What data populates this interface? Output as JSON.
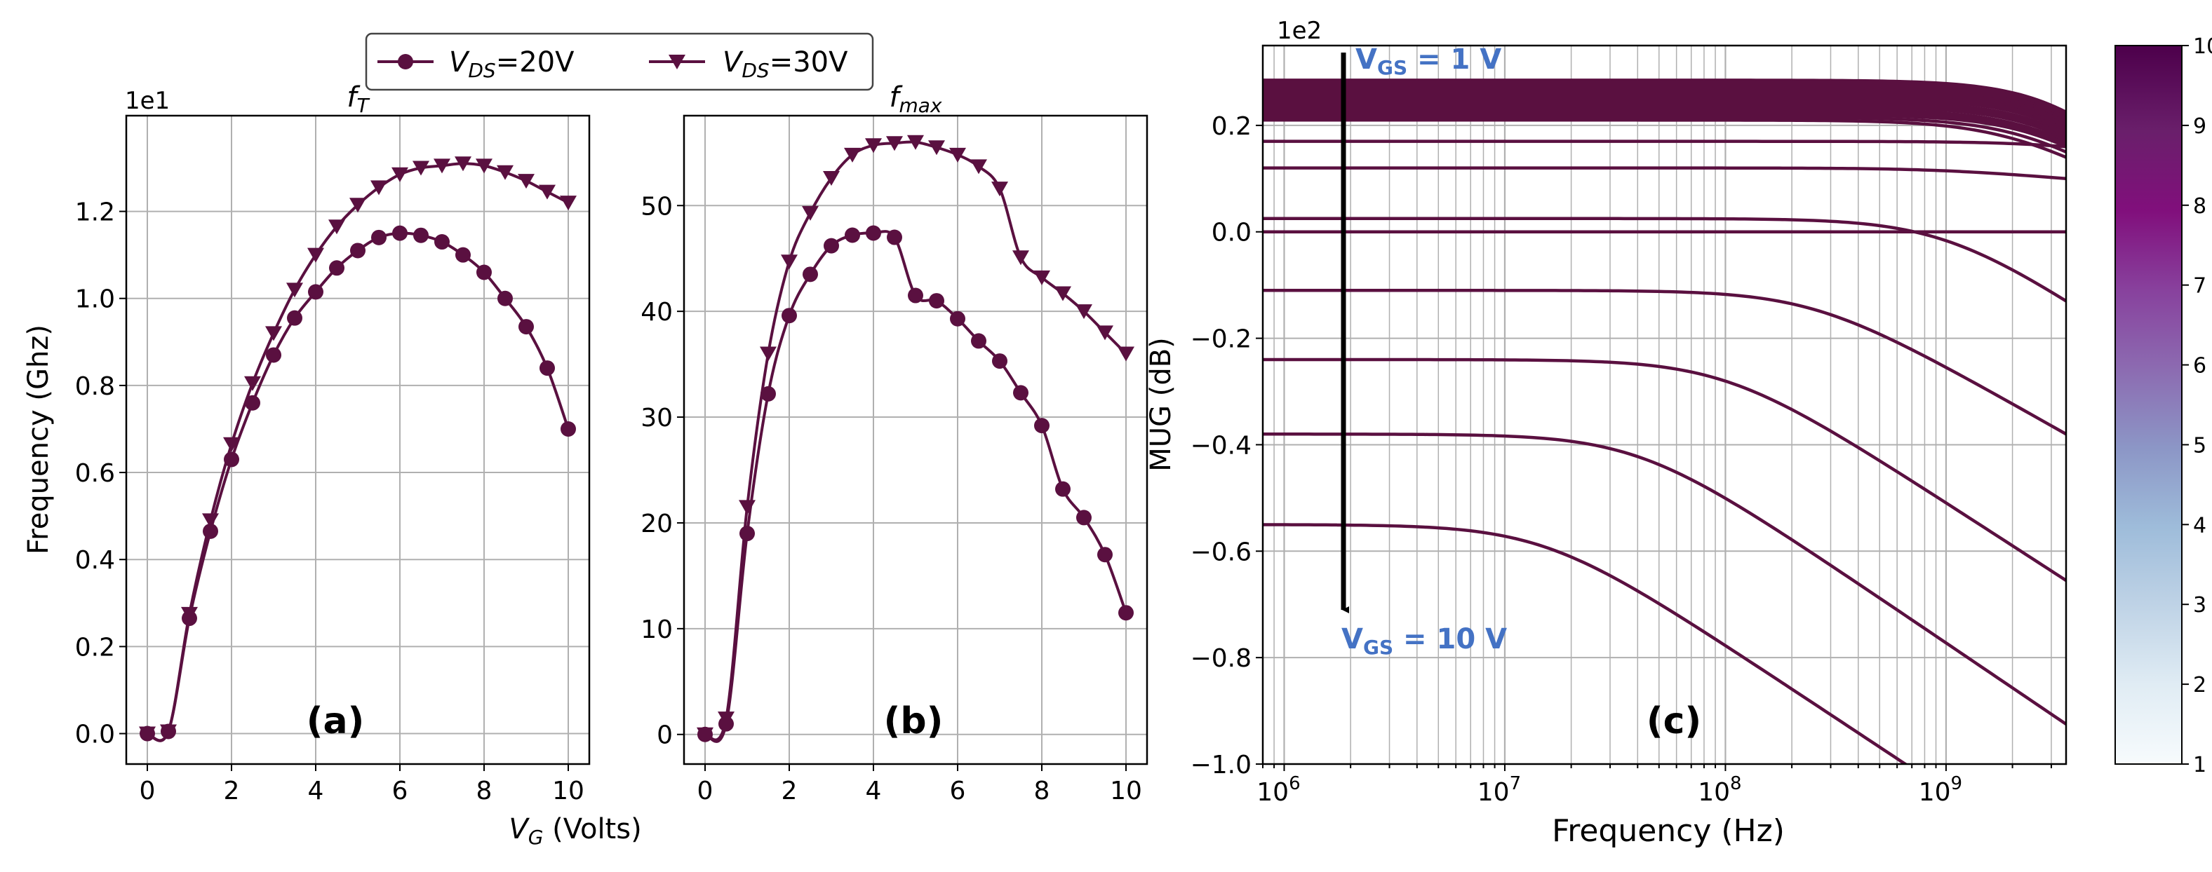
{
  "legend": {
    "entries": [
      {
        "main": "V",
        "sub": "DS",
        "rest": "=20V"
      },
      {
        "main": "V",
        "sub": "DS",
        "rest": "=30V"
      }
    ]
  },
  "colors": {
    "series": "#5a1040",
    "vgs_text": "#4472c4",
    "grid": "#b0b0b0",
    "arrow": "#000000"
  },
  "chart_data": [
    {
      "id": "a",
      "type": "line",
      "panel_label": "(a)",
      "title": {
        "main": "f",
        "sub": "T"
      },
      "xlabel": {
        "main": "V",
        "sub": "G",
        "rest": " (Volts)"
      },
      "ylabel": "Frequency (Ghz)",
      "offset_text": "1e1",
      "xlim": [
        -0.5,
        10.5
      ],
      "ylim": [
        -0.07,
        1.42
      ],
      "xticks": [
        0,
        2,
        4,
        6,
        8,
        10
      ],
      "yticks": [
        0.0,
        0.2,
        0.4,
        0.6,
        0.8,
        1.0,
        1.2
      ],
      "ytick_labels": [
        "0.0",
        "0.2",
        "0.4",
        "0.6",
        "0.8",
        "1.0",
        "1.2"
      ],
      "grid": true,
      "series": [
        {
          "legend_index": 0,
          "marker": "circle",
          "x": [
            0,
            0.5,
            1,
            1.5,
            2,
            2.5,
            3,
            3.5,
            4,
            4.5,
            5,
            5.5,
            6,
            6.5,
            7,
            7.5,
            8,
            8.5,
            9,
            9.5,
            10
          ],
          "y": [
            0,
            0.005,
            0.265,
            0.465,
            0.63,
            0.76,
            0.87,
            0.955,
            1.015,
            1.07,
            1.11,
            1.14,
            1.15,
            1.145,
            1.13,
            1.1,
            1.06,
            1.0,
            0.935,
            0.84,
            0.7
          ]
        },
        {
          "legend_index": 1,
          "marker": "triangle-down",
          "x": [
            0,
            0.5,
            1,
            1.5,
            2,
            2.5,
            3,
            3.5,
            4,
            4.5,
            5,
            5.5,
            6,
            6.5,
            7,
            7.5,
            8,
            8.5,
            9,
            9.5,
            10
          ],
          "y": [
            0,
            0.005,
            0.275,
            0.49,
            0.665,
            0.805,
            0.92,
            1.02,
            1.1,
            1.165,
            1.215,
            1.255,
            1.285,
            1.3,
            1.305,
            1.31,
            1.305,
            1.29,
            1.27,
            1.245,
            1.22
          ]
        }
      ]
    },
    {
      "id": "b",
      "type": "line",
      "panel_label": "(b)",
      "title": {
        "main": "f",
        "sub": "max"
      },
      "xlabel": null,
      "ylabel": "",
      "offset_text": "",
      "xlim": [
        -0.5,
        10.5
      ],
      "ylim": [
        -2.8,
        58.5
      ],
      "xticks": [
        0,
        2,
        4,
        6,
        8,
        10
      ],
      "yticks": [
        0,
        10,
        20,
        30,
        40,
        50
      ],
      "ytick_labels": [
        "0",
        "10",
        "20",
        "30",
        "40",
        "50"
      ],
      "grid": true,
      "series": [
        {
          "legend_index": 0,
          "marker": "circle",
          "x": [
            0,
            0.5,
            1,
            1.5,
            2,
            2.5,
            3,
            3.5,
            4,
            4.5,
            5,
            5.5,
            6,
            6.5,
            7,
            7.5,
            8,
            8.5,
            9,
            9.5,
            10
          ],
          "y": [
            0,
            1,
            19,
            32.2,
            39.6,
            43.5,
            46.2,
            47.2,
            47.4,
            47.0,
            41.5,
            41.0,
            39.3,
            37.2,
            35.3,
            32.3,
            29.2,
            23.2,
            20.5,
            17.0,
            11.5
          ]
        },
        {
          "legend_index": 1,
          "marker": "triangle-down",
          "x": [
            0,
            0.5,
            1,
            1.5,
            2,
            2.5,
            3,
            3.5,
            4,
            4.5,
            5,
            5.5,
            6,
            6.5,
            7,
            7.5,
            8,
            8.5,
            9,
            9.5,
            10
          ],
          "y": [
            0,
            1.5,
            21.5,
            36,
            44.7,
            49.3,
            52.6,
            54.8,
            55.7,
            55.9,
            56.0,
            55.5,
            54.8,
            53.7,
            51.6,
            45.1,
            43.2,
            41.7,
            40.0,
            38.0,
            36.0
          ]
        }
      ]
    },
    {
      "id": "c",
      "type": "line",
      "panel_label": "(c)",
      "xlabel": "Frequency  (Hz)",
      "ylabel": "MUG (dB)",
      "offset_text": "1e2",
      "xscale": "log",
      "xlim": [
        800000,
        3500000000
      ],
      "ylim": [
        -1.0,
        0.35
      ],
      "xticks": [
        1000000,
        10000000,
        100000000,
        1000000000
      ],
      "xtick_labels": [
        {
          "base": "10",
          "exp": "6"
        },
        {
          "base": "10",
          "exp": "7"
        },
        {
          "base": "10",
          "exp": "8"
        },
        {
          "base": "10",
          "exp": "9"
        }
      ],
      "yticks": [
        0.2,
        0.0,
        -0.2,
        -0.4,
        -0.6,
        -0.8,
        -1.0
      ],
      "ytick_labels": [
        "0.2",
        "0.0",
        "−0.2",
        "−0.4",
        "−0.6",
        "−0.8",
        "−1.0"
      ],
      "grid": true,
      "minor_grid": true,
      "annotations": [
        {
          "text_main": "V",
          "text_sub": "GS",
          "text_rest": " = 1 V",
          "position": "top-left"
        },
        {
          "text_main": "V",
          "text_sub": "GS",
          "text_rest": " = 10 V",
          "position": "bottom-left"
        }
      ],
      "arrow": {
        "from": "V_GS = 1 V",
        "to": "V_GS = 10 V",
        "direction": "down"
      },
      "colorbar": {
        "vmin": 1,
        "vmax": 10,
        "ticks": [
          1,
          2,
          3,
          4,
          5,
          6,
          7,
          8,
          9,
          10
        ],
        "colors": [
          "#f7fbfd",
          "#e0ecf4",
          "#bfd3e6",
          "#9ebcda",
          "#8c96c6",
          "#8c6bb1",
          "#88419d",
          "#810f7c",
          "#6a1f6b",
          "#4d004b"
        ]
      },
      "curves": [
        {
          "v0": 0.285,
          "v_end": 0.225
        },
        {
          "v0": 0.28,
          "v_end": 0.22
        },
        {
          "v0": 0.275,
          "v_end": 0.215
        },
        {
          "v0": 0.27,
          "v_end": 0.21
        },
        {
          "v0": 0.265,
          "v_end": 0.205
        },
        {
          "v0": 0.26,
          "v_end": 0.2
        },
        {
          "v0": 0.255,
          "v_end": 0.195
        },
        {
          "v0": 0.25,
          "v_end": 0.19
        },
        {
          "v0": 0.245,
          "v_end": 0.185
        },
        {
          "v0": 0.24,
          "v_end": 0.18
        },
        {
          "v0": 0.235,
          "v_end": 0.175
        },
        {
          "v0": 0.23,
          "v_end": 0.17
        },
        {
          "v0": 0.225,
          "v_end": 0.165
        },
        {
          "v0": 0.22,
          "v_end": 0.16
        },
        {
          "v0": 0.215,
          "v_end": 0.15
        },
        {
          "v0": 0.21,
          "v_end": 0.14
        },
        {
          "v0": 0.17,
          "v_end": 0.16
        },
        {
          "v0": 0.12,
          "v_end": 0.1
        },
        {
          "v0": 0.025,
          "v_end": -0.13
        },
        {
          "v0": 0.0,
          "v_end": 0.0
        },
        {
          "v0": -0.11,
          "v_end": -0.38
        },
        {
          "v0": -0.24,
          "v_end": -0.655
        },
        {
          "v0": -0.38,
          "v_end": -0.925
        },
        {
          "v0": -0.55,
          "v_end": -1.2
        }
      ],
      "curve_fc_hz": [
        4000000000,
        4000000000,
        4000000000,
        4000000000,
        4000000000,
        4000000000,
        4000000000,
        4000000000,
        3500000000,
        3500000000,
        3500000000,
        3000000000,
        3000000000,
        3000000000,
        2500000000,
        2000000000,
        3000000000,
        1000000000,
        1000000000,
        1,
        250000000,
        100000000,
        40000000,
        15000000
      ]
    }
  ]
}
